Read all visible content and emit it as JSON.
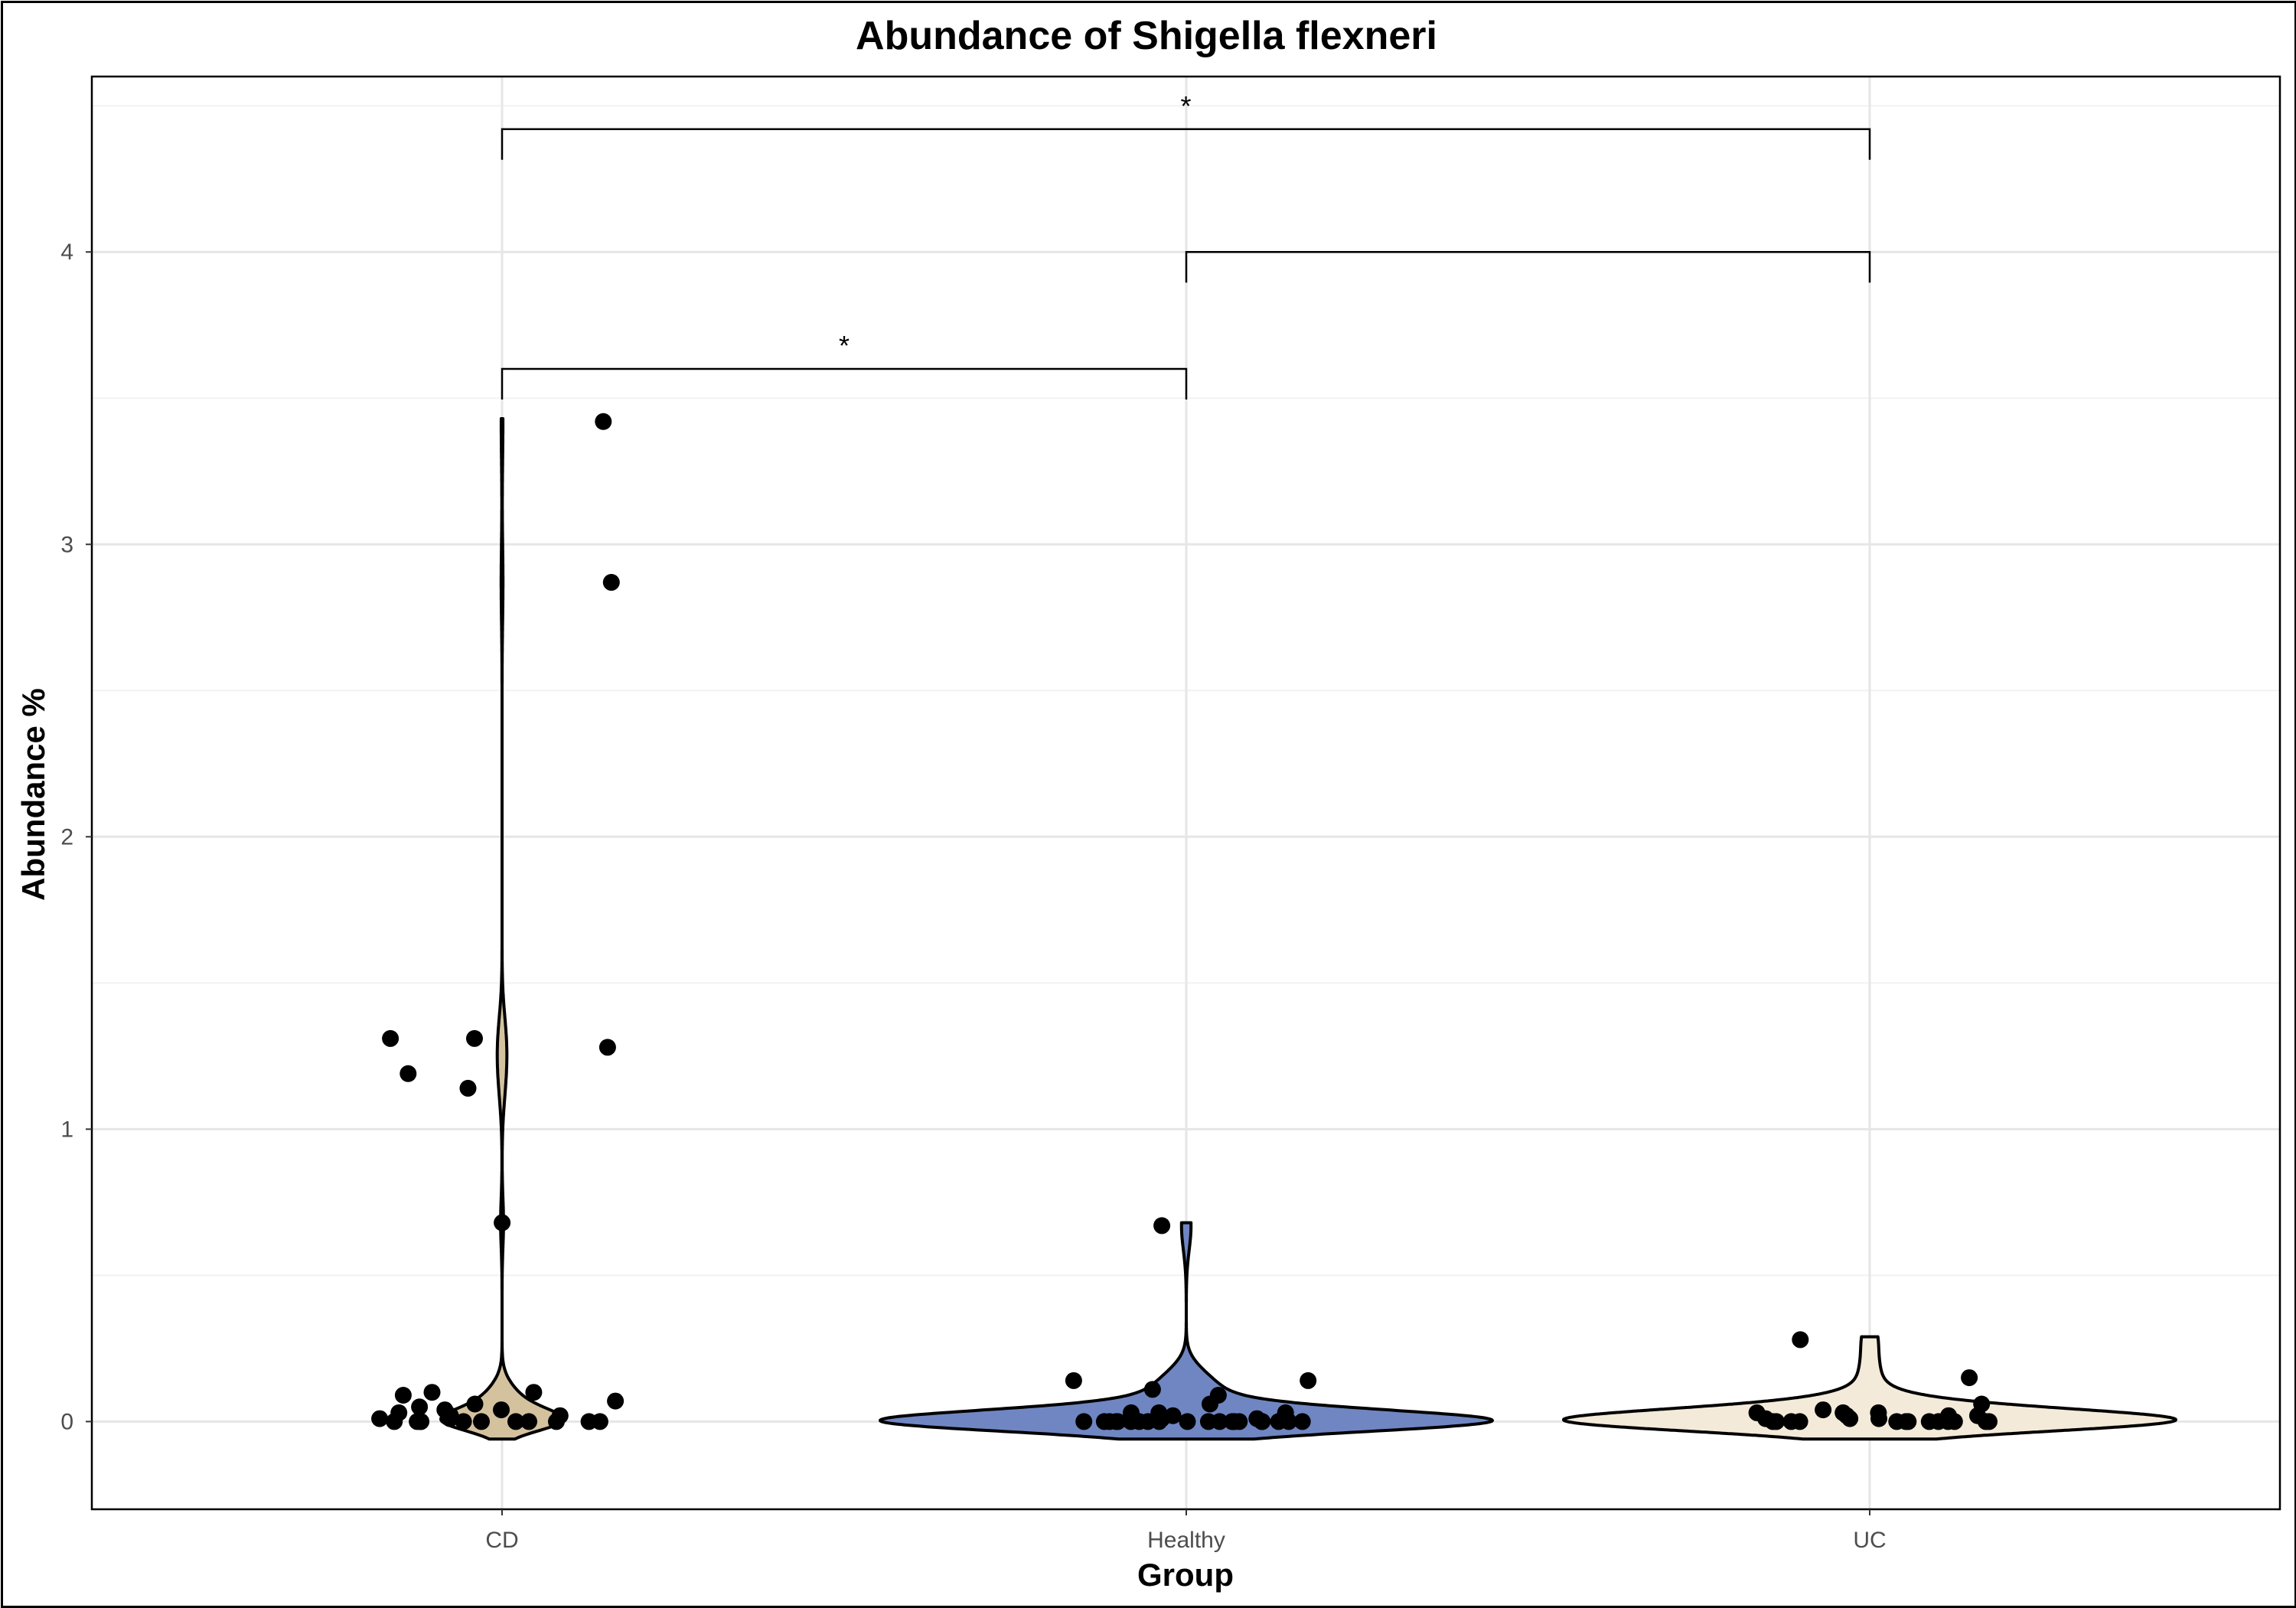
{
  "chart_data": {
    "type": "violin",
    "title": "Abundance of Shigella flexneri",
    "xlabel": "Group",
    "ylabel": "Abundance %",
    "ylim": [
      -0.3,
      4.6
    ],
    "yticks": [
      0,
      1,
      2,
      3,
      4
    ],
    "grid": true,
    "categories": [
      "CD",
      "Healthy",
      "UC"
    ],
    "series": [
      {
        "category": "CD",
        "fill": "#d4c29f",
        "values": [
          3.42,
          2.87,
          1.31,
          1.31,
          1.28,
          1.19,
          1.14,
          0.68,
          0.1,
          0.1,
          0.09,
          0.07,
          0.06,
          0.05,
          0.04,
          0.04,
          0.03,
          0.02,
          0.02,
          0.01,
          0.01,
          0.0,
          0.0,
          0.0,
          0.0,
          0.0,
          0.0,
          0.0,
          0.0,
          0.0,
          0.0,
          0.0
        ]
      },
      {
        "category": "Healthy",
        "fill": "#6f86c2",
        "values": [
          0.67,
          0.14,
          0.14,
          0.11,
          0.09,
          0.06,
          0.03,
          0.03,
          0.03,
          0.02,
          0.02,
          0.01,
          0.01,
          0.0,
          0.0,
          0.0,
          0.0,
          0.0,
          0.0,
          0.0,
          0.0,
          0.0,
          0.0,
          0.0,
          0.0,
          0.0,
          0.0,
          0.0,
          0.0,
          0.0,
          0.0,
          0.0,
          0.0,
          0.0
        ]
      },
      {
        "category": "UC",
        "fill": "#f3ead9",
        "values": [
          0.28,
          0.15,
          0.06,
          0.04,
          0.03,
          0.03,
          0.03,
          0.02,
          0.02,
          0.02,
          0.01,
          0.01,
          0.01,
          0.0,
          0.0,
          0.0,
          0.0,
          0.0,
          0.0,
          0.0,
          0.0,
          0.0,
          0.0,
          0.0,
          0.0,
          0.0
        ]
      }
    ],
    "comparisons": [
      {
        "from": "CD",
        "to": "Healthy",
        "y": 3.6,
        "label": "*"
      },
      {
        "from": "Healthy",
        "to": "UC",
        "y": 4.0,
        "label": ""
      },
      {
        "from": "CD",
        "to": "UC",
        "y": 4.42,
        "label": "*"
      }
    ]
  }
}
